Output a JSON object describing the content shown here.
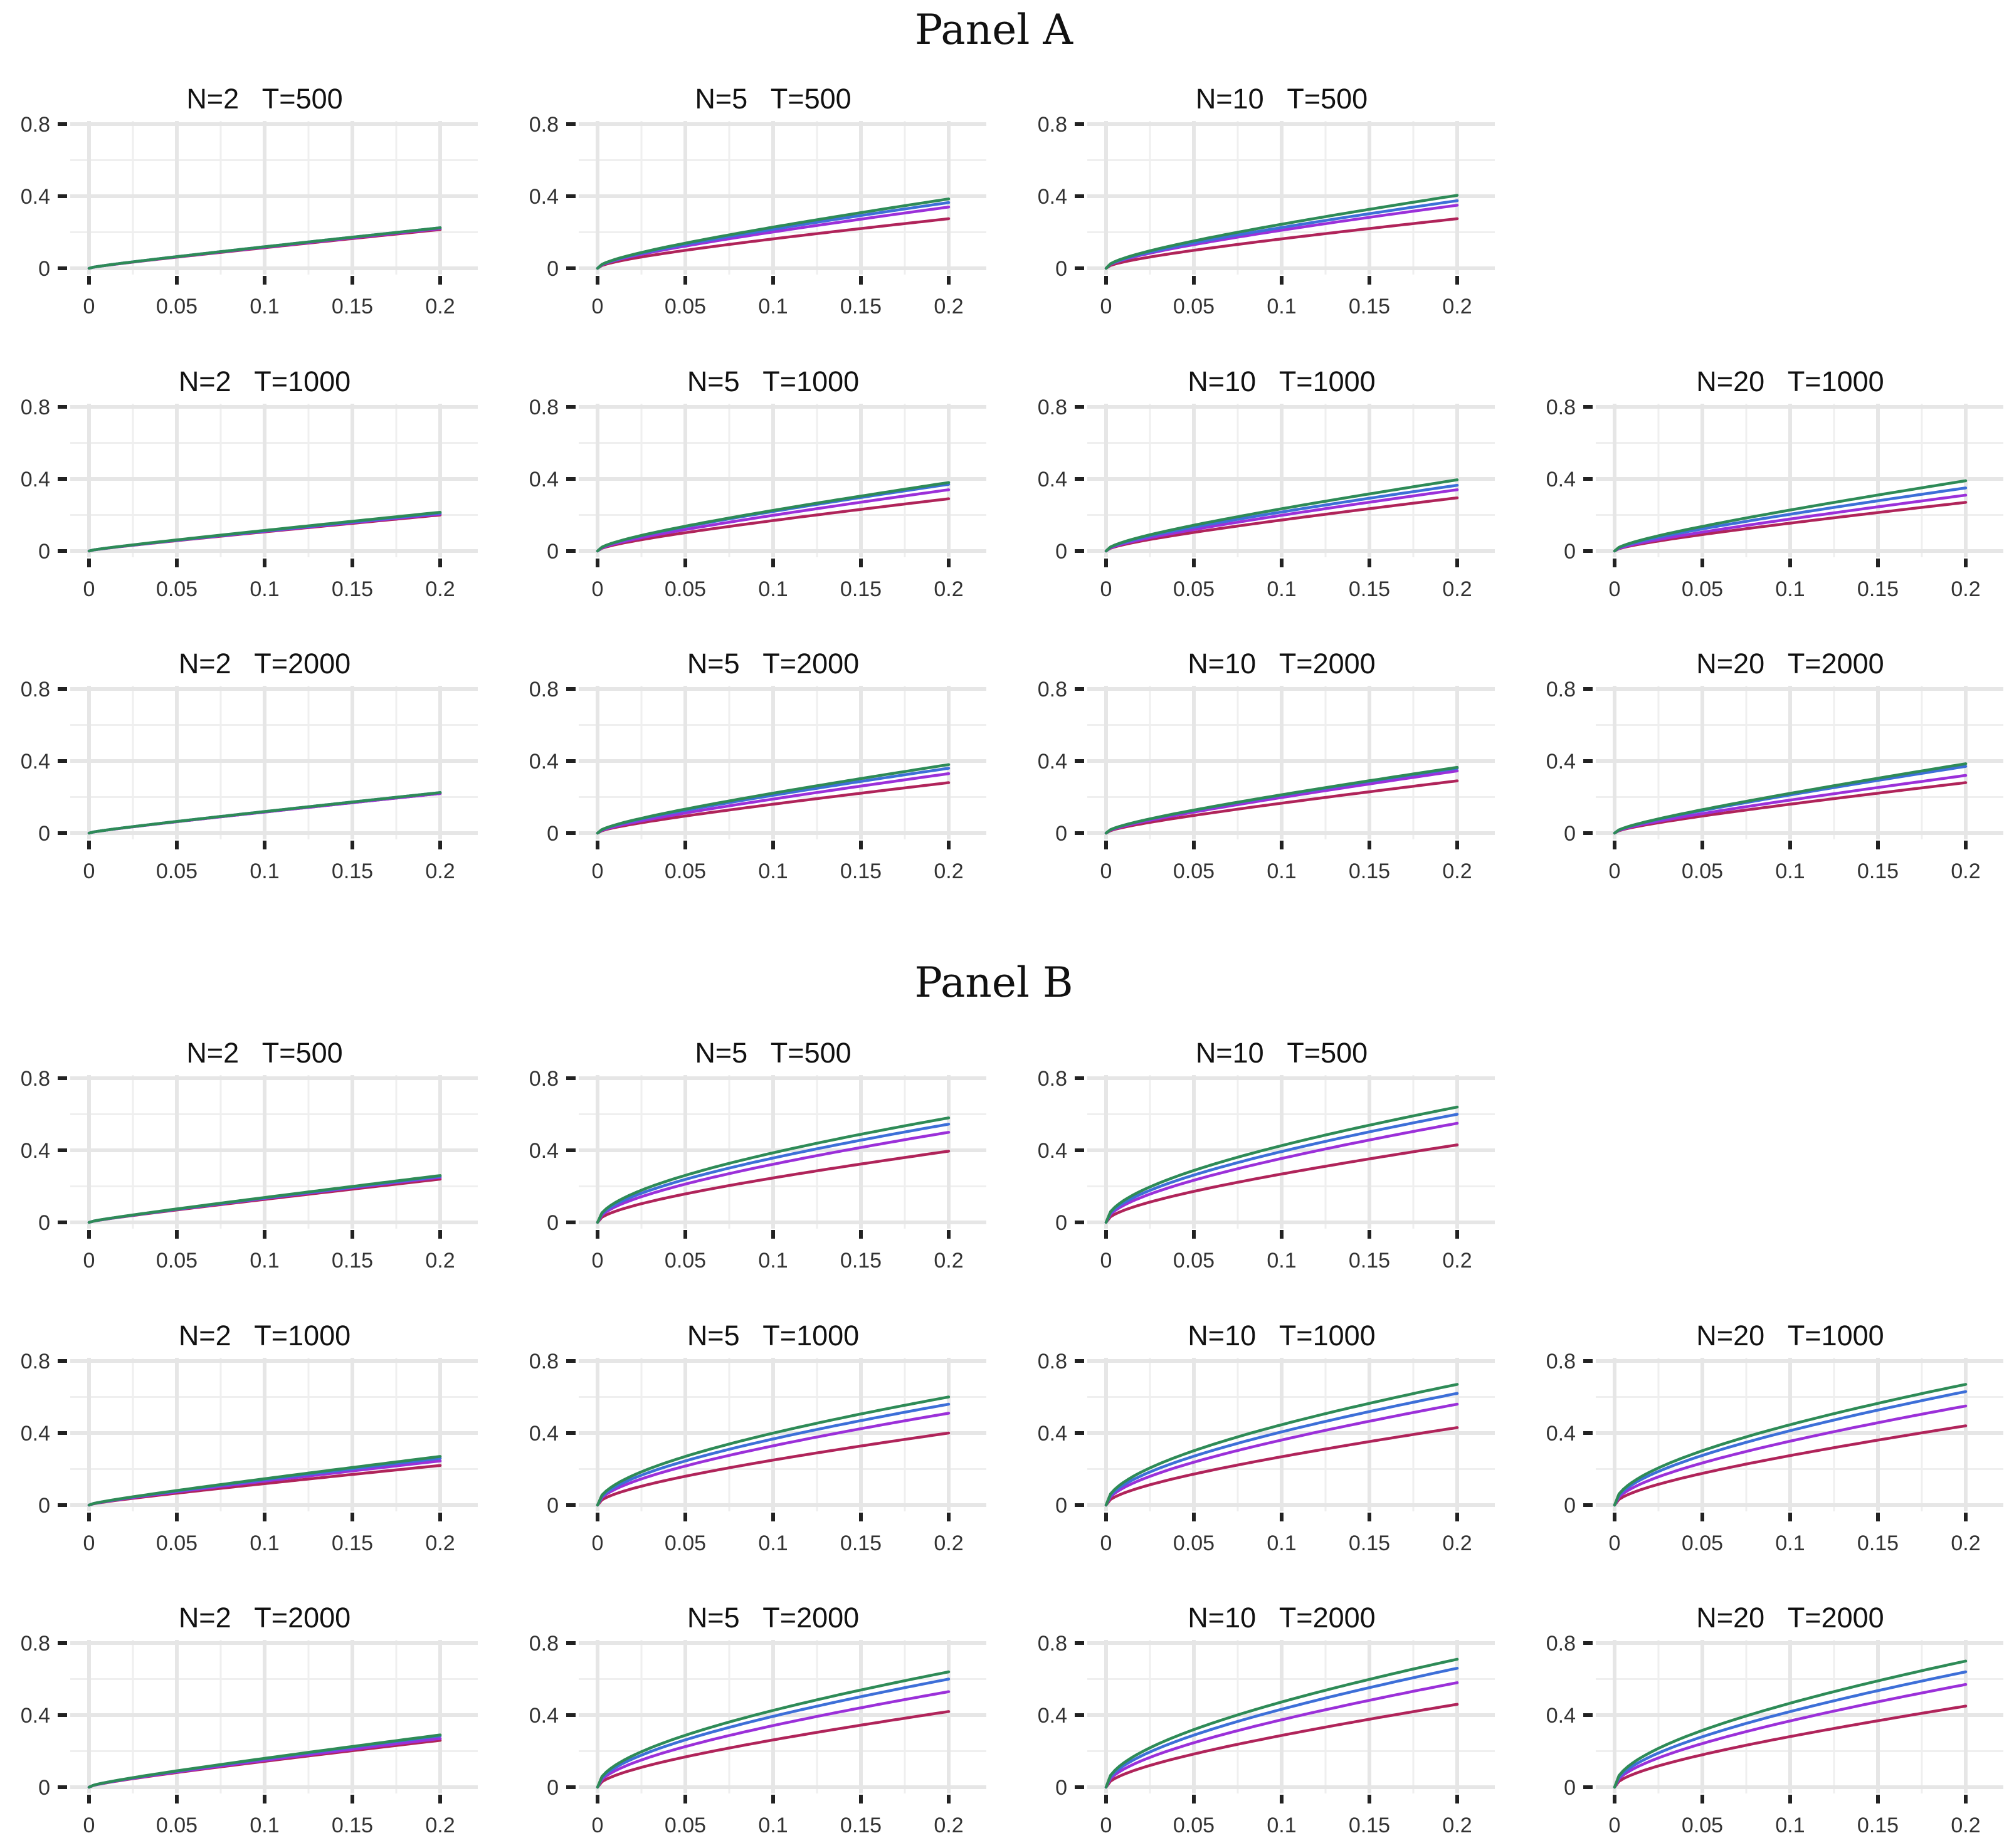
{
  "panels": [
    {
      "title": "Panel A",
      "rows": [
        [
          {
            "title": "N=2   T=500",
            "end": [
              0.225,
              0.225,
              0.22,
              0.215
            ],
            "curv": [
              0.15,
              0.15,
              0.15,
              0.15
            ]
          },
          {
            "title": "N=5   T=500",
            "end": [
              0.385,
              0.365,
              0.34,
              0.275
            ],
            "curv": [
              0.45,
              0.45,
              0.45,
              0.45
            ]
          },
          {
            "title": "N=10   T=500",
            "end": [
              0.405,
              0.375,
              0.35,
              0.275
            ],
            "curv": [
              0.5,
              0.5,
              0.5,
              0.45
            ]
          },
          null
        ],
        [
          {
            "title": "N=2   T=1000",
            "end": [
              0.215,
              0.21,
              0.205,
              0.2
            ],
            "curv": [
              0.15,
              0.15,
              0.15,
              0.15
            ]
          },
          {
            "title": "N=5   T=1000",
            "end": [
              0.38,
              0.37,
              0.34,
              0.29
            ],
            "curv": [
              0.45,
              0.45,
              0.4,
              0.4
            ]
          },
          {
            "title": "N=10   T=1000",
            "end": [
              0.395,
              0.365,
              0.34,
              0.295
            ],
            "curv": [
              0.45,
              0.45,
              0.4,
              0.4
            ]
          },
          {
            "title": "N=20   T=1000",
            "end": [
              0.39,
              0.35,
              0.31,
              0.27
            ],
            "curv": [
              0.4,
              0.4,
              0.35,
              0.35
            ]
          }
        ],
        [
          {
            "title": "N=2   T=2000",
            "end": [
              0.225,
              0.225,
              0.22,
              0.22
            ],
            "curv": [
              0.15,
              0.15,
              0.15,
              0.15
            ]
          },
          {
            "title": "N=5   T=2000",
            "end": [
              0.38,
              0.36,
              0.33,
              0.28
            ],
            "curv": [
              0.4,
              0.4,
              0.35,
              0.35
            ]
          },
          {
            "title": "N=10   T=2000",
            "end": [
              0.365,
              0.36,
              0.345,
              0.29
            ],
            "curv": [
              0.4,
              0.4,
              0.35,
              0.35
            ]
          },
          {
            "title": "N=20   T=2000",
            "end": [
              0.385,
              0.37,
              0.32,
              0.28
            ],
            "curv": [
              0.35,
              0.35,
              0.35,
              0.35
            ]
          }
        ]
      ]
    },
    {
      "title": "Panel B",
      "rows": [
        [
          {
            "title": "N=2   T=500",
            "end": [
              0.26,
              0.255,
              0.25,
              0.24
            ],
            "curv": [
              0.15,
              0.15,
              0.15,
              0.15
            ]
          },
          {
            "title": "N=5   T=500",
            "end": [
              0.58,
              0.545,
              0.5,
              0.395
            ],
            "curv": [
              0.8,
              0.75,
              0.7,
              0.6
            ]
          },
          {
            "title": "N=10   T=500",
            "end": [
              0.64,
              0.6,
              0.55,
              0.43
            ],
            "curv": [
              0.8,
              0.75,
              0.7,
              0.6
            ]
          },
          null
        ],
        [
          {
            "title": "N=2   T=1000",
            "end": [
              0.27,
              0.26,
              0.245,
              0.22
            ],
            "curv": [
              0.2,
              0.2,
              0.2,
              0.2
            ]
          },
          {
            "title": "N=5   T=1000",
            "end": [
              0.6,
              0.56,
              0.51,
              0.4
            ],
            "curv": [
              0.8,
              0.75,
              0.7,
              0.6
            ]
          },
          {
            "title": "N=10   T=1000",
            "end": [
              0.67,
              0.62,
              0.56,
              0.43
            ],
            "curv": [
              0.8,
              0.75,
              0.7,
              0.6
            ]
          },
          {
            "title": "N=20   T=1000",
            "end": [
              0.67,
              0.63,
              0.55,
              0.44
            ],
            "curv": [
              0.8,
              0.75,
              0.7,
              0.6
            ]
          }
        ],
        [
          {
            "title": "N=2   T=2000",
            "end": [
              0.29,
              0.285,
              0.27,
              0.26
            ],
            "curv": [
              0.25,
              0.25,
              0.25,
              0.25
            ]
          },
          {
            "title": "N=5   T=2000",
            "end": [
              0.64,
              0.6,
              0.53,
              0.42
            ],
            "curv": [
              0.8,
              0.75,
              0.7,
              0.6
            ]
          },
          {
            "title": "N=10   T=2000",
            "end": [
              0.71,
              0.66,
              0.58,
              0.46
            ],
            "curv": [
              0.8,
              0.75,
              0.7,
              0.6
            ]
          },
          {
            "title": "N=20   T=2000",
            "end": [
              0.7,
              0.64,
              0.57,
              0.45
            ],
            "curv": [
              0.8,
              0.75,
              0.7,
              0.6
            ]
          }
        ]
      ]
    }
  ],
  "chart_data": {
    "type": "line",
    "xlim": [
      0,
      0.2
    ],
    "ylim": [
      0,
      0.8
    ],
    "x_ticks": [
      "0",
      "0.05",
      "0.1",
      "0.15",
      "0.2"
    ],
    "y_ticks": [
      "0",
      "0.4",
      "0.8"
    ],
    "x_tick_values": [
      0,
      0.05,
      0.1,
      0.15,
      0.2
    ],
    "y_tick_values": [
      0,
      0.4,
      0.8
    ],
    "series_colors": [
      "#2e8b57",
      "#3d6fd8",
      "#9b30d9",
      "#b0245a"
    ],
    "grid": true,
    "legend": "none"
  }
}
